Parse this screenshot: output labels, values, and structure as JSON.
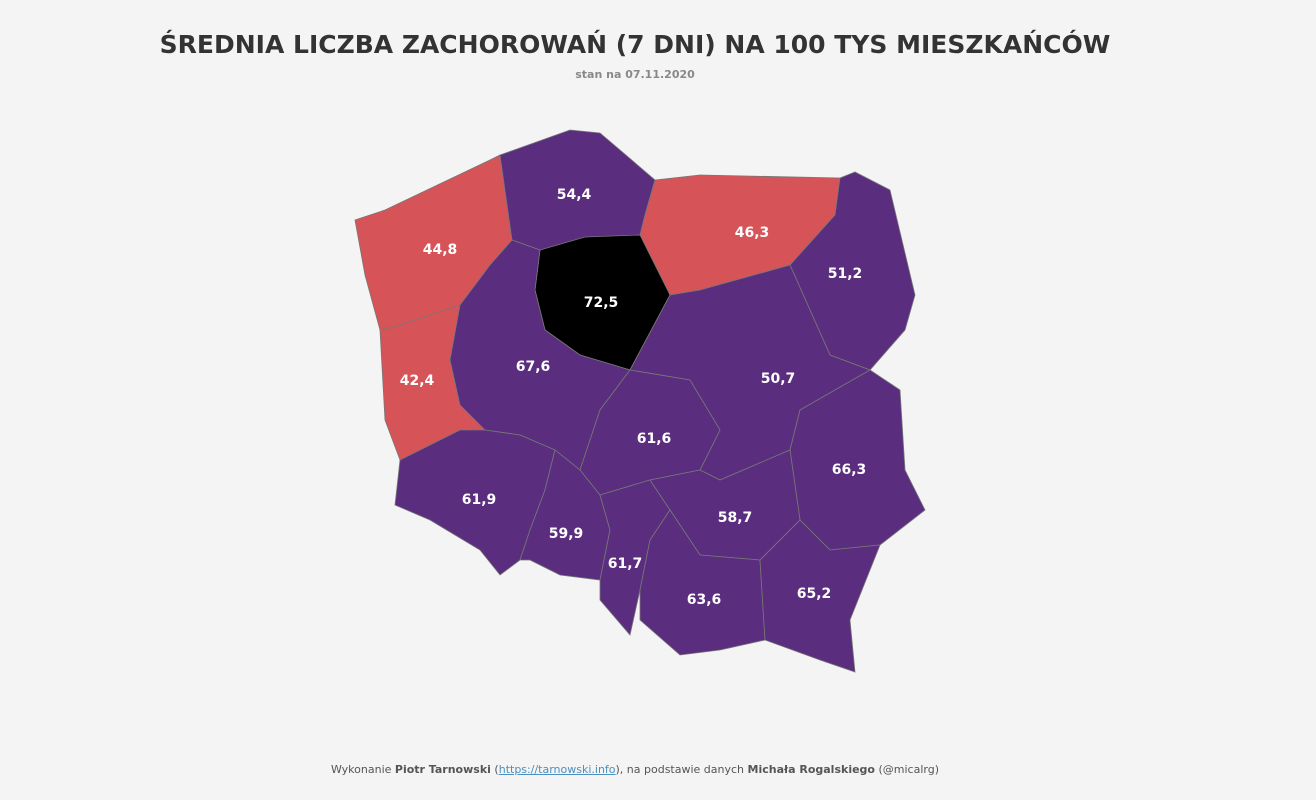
{
  "header": {
    "title": "ŚREDNIA LICZBA ZACHOROWAŃ (7 DNI) NA 100 TYS MIESZKAŃCÓW",
    "subtitle": "stan na 07.11.2020"
  },
  "regions": [
    {
      "value": "44,8",
      "color": "#d65358"
    },
    {
      "value": "54,4",
      "color": "#5a2d7e"
    },
    {
      "value": "46,3",
      "color": "#d65358"
    },
    {
      "value": "72,5",
      "color": "#000000"
    },
    {
      "value": "51,2",
      "color": "#5a2d7e"
    },
    {
      "value": "42,4",
      "color": "#d65358"
    },
    {
      "value": "67,6",
      "color": "#5a2d7e"
    },
    {
      "value": "50,7",
      "color": "#5a2d7e"
    },
    {
      "value": "61,6",
      "color": "#5a2d7e"
    },
    {
      "value": "66,3",
      "color": "#5a2d7e"
    },
    {
      "value": "61,9",
      "color": "#5a2d7e"
    },
    {
      "value": "59,9",
      "color": "#5a2d7e"
    },
    {
      "value": "61,7",
      "color": "#5a2d7e"
    },
    {
      "value": "58,7",
      "color": "#5a2d7e"
    },
    {
      "value": "63,6",
      "color": "#5a2d7e"
    },
    {
      "value": "65,2",
      "color": "#5a2d7e"
    }
  ],
  "footer": {
    "prefix": "Wykonanie ",
    "author": "Piotr Tarnowski",
    "open": " (",
    "link": "https://tarnowski.info",
    "middle": "), na podstawie danych ",
    "source": "Michała Rogalskiego",
    "handle": " (@micalrg)"
  }
}
